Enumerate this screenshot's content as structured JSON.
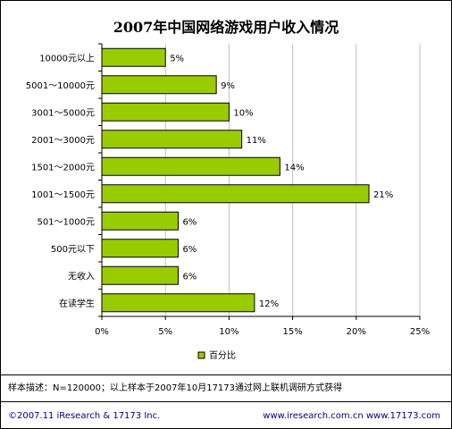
{
  "footer": {
    "left": "©2007.11  iResearch & 17173 Inc.",
    "right": "www.iresearch.com.cn  www.17173.com"
  },
  "note": "样本描述：N=120000；以上样本于2007年10月17173通过网上联机调研方式获得",
  "colors": {
    "bar": "#99cc00",
    "bar_stroke": "#000000",
    "grid": "#c0c0c0"
  },
  "chart_data": {
    "type": "bar",
    "orientation": "horizontal",
    "title": "2007年中国网络游戏用户收入情况",
    "categories": [
      "10000元以上",
      "5001～10000元",
      "3001～5000元",
      "2001～3000元",
      "1501～2000元",
      "1001～1500元",
      "501～1000元",
      "500元以下",
      "无收入",
      "在读学生"
    ],
    "series": [
      {
        "name": "百分比",
        "values": [
          5,
          9,
          10,
          11,
          14,
          21,
          6,
          6,
          6,
          12
        ]
      }
    ],
    "data_labels": [
      "5%",
      "9%",
      "10%",
      "11%",
      "14%",
      "21%",
      "6%",
      "6%",
      "6%",
      "12%"
    ],
    "xlim": [
      0,
      25
    ],
    "xticks": [
      0,
      5,
      10,
      15,
      20,
      25
    ],
    "xtick_labels": [
      "0%",
      "5%",
      "10%",
      "15%",
      "20%",
      "25%"
    ],
    "grid": true,
    "legend_position": "bottom"
  }
}
